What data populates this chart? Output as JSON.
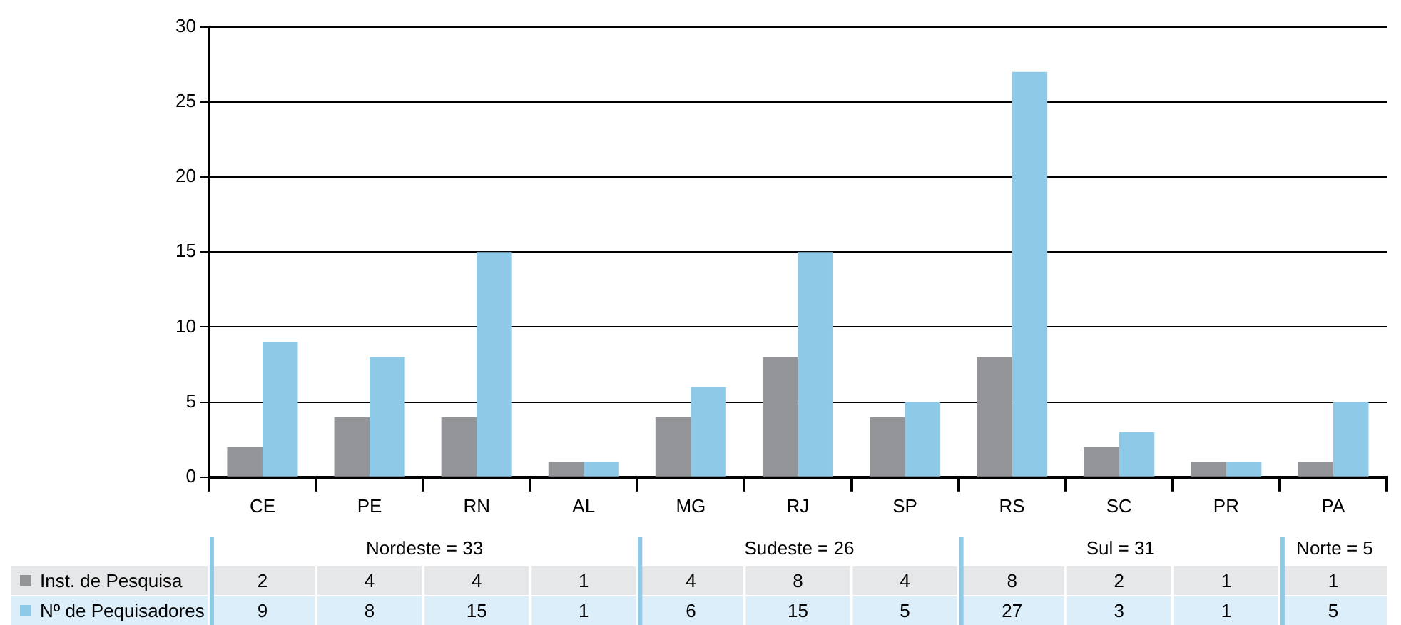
{
  "chart_data": {
    "type": "bar",
    "categories": [
      "CE",
      "PE",
      "RN",
      "AL",
      "MG",
      "RJ",
      "SP",
      "RS",
      "SC",
      "PR",
      "PA"
    ],
    "series": [
      {
        "name": "Inst. de Pesquisa",
        "color": "#939598",
        "values": [
          2,
          4,
          4,
          1,
          4,
          8,
          4,
          8,
          2,
          1,
          1
        ]
      },
      {
        "name": "Nº de Pequisadores",
        "color": "#8ecae8",
        "values": [
          9,
          8,
          15,
          1,
          6,
          15,
          5,
          27,
          3,
          1,
          5
        ]
      }
    ],
    "ylim": [
      0,
      30
    ],
    "yticks": [
      0,
      5,
      10,
      15,
      20,
      25,
      30
    ],
    "grid": "y",
    "data_labels": true,
    "legend": "bottom left",
    "annotations": [
      "Nordeste = 33",
      "Sudeste = 26",
      "Sul = 31",
      "Norte = 5"
    ]
  }
}
